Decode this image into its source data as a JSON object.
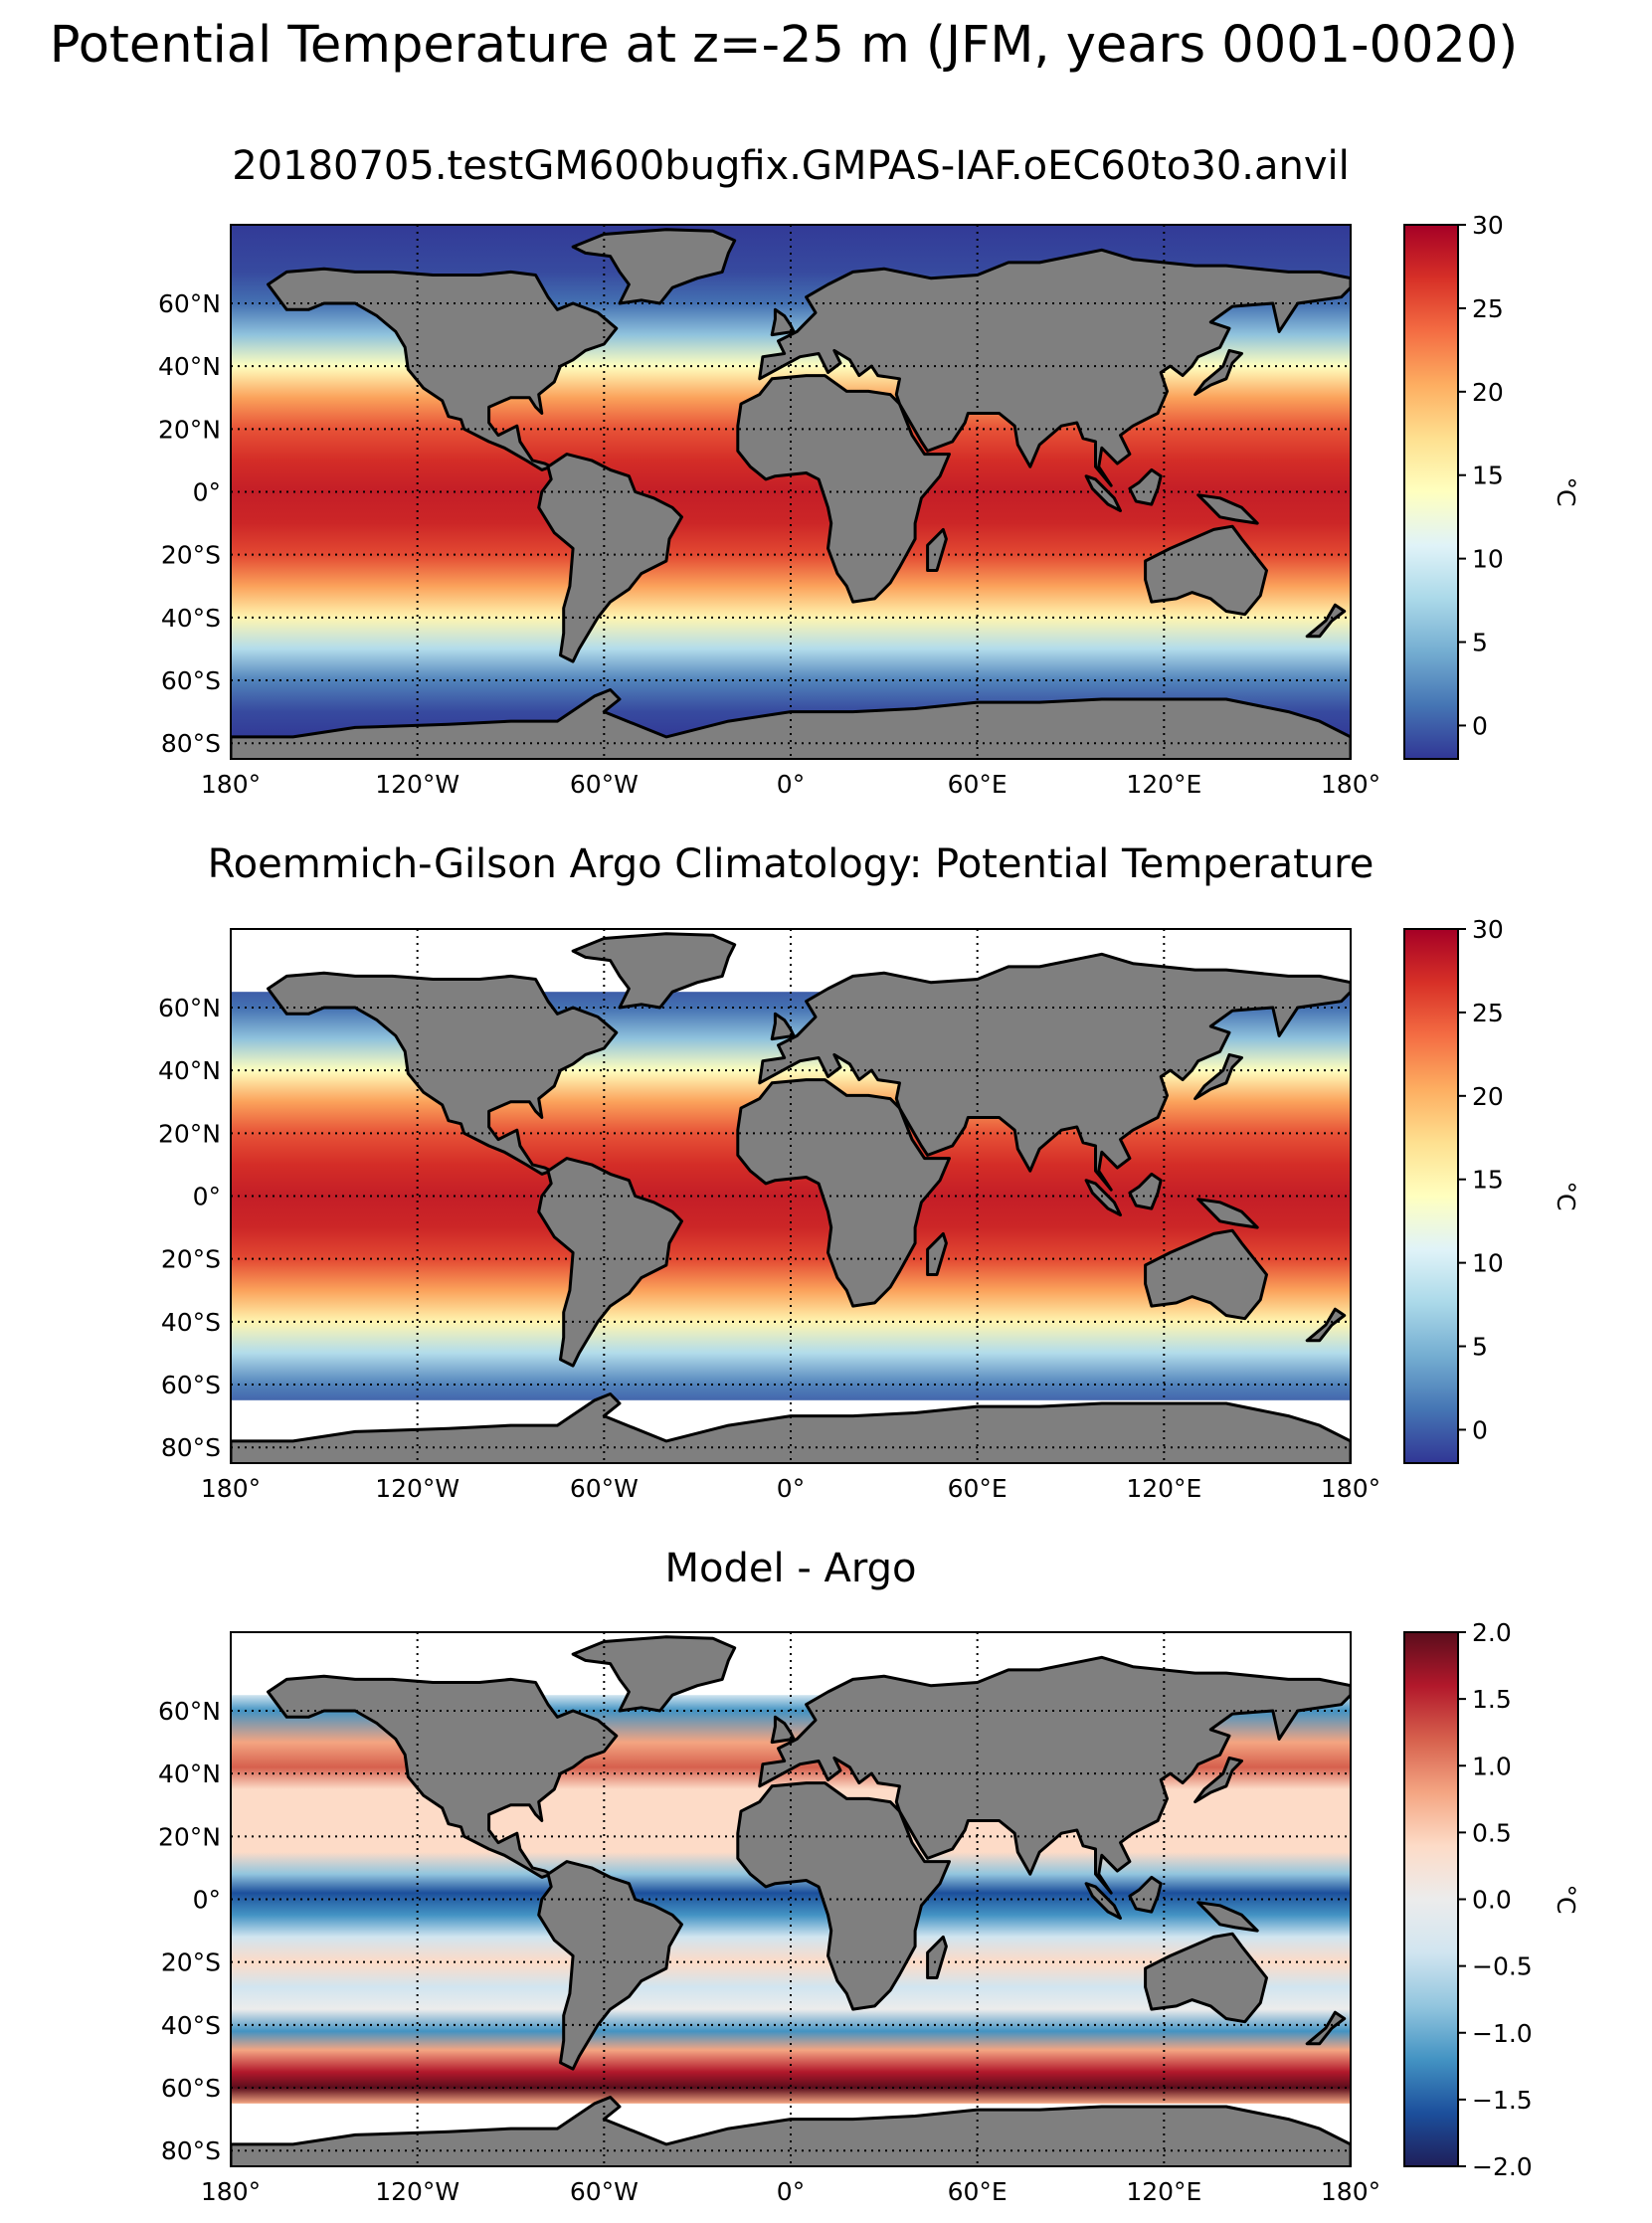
{
  "figure": {
    "title": "Potential Temperature at z=-25 m (JFM, years 0001-0020)"
  },
  "panels": [
    {
      "id": "model",
      "title": "20180705.testGM600bugfix.GMPAS-IAF.oEC60to30.anvil",
      "colormap": "RdYlBu_r",
      "colorbar": {
        "label": "°C",
        "range": [
          -2,
          30
        ],
        "ticks": [
          "30",
          "25",
          "20",
          "15",
          "10",
          "5",
          "0"
        ],
        "tick_values": [
          30,
          25,
          20,
          15,
          10,
          5,
          0
        ]
      },
      "coverage": {
        "lat_min": -78,
        "lat_max": 85
      }
    },
    {
      "id": "obs",
      "title": "Roemmich-Gilson Argo Climatology: Potential Temperature",
      "colormap": "RdYlBu_r",
      "colorbar": {
        "label": "°C",
        "range": [
          -2,
          30
        ],
        "ticks": [
          "30",
          "25",
          "20",
          "15",
          "10",
          "5",
          "0"
        ],
        "tick_values": [
          30,
          25,
          20,
          15,
          10,
          5,
          0
        ]
      },
      "coverage": {
        "lat_min": -65,
        "lat_max": 65
      }
    },
    {
      "id": "bias",
      "title": "Model - Argo",
      "colormap": "RdBu_r",
      "colorbar": {
        "label": "°C",
        "range": [
          -2,
          2
        ],
        "ticks": [
          "2.0",
          "1.5",
          "1.0",
          "0.5",
          "0.0",
          "−0.5",
          "−1.0",
          "−1.5",
          "−2.0"
        ],
        "tick_values": [
          2,
          1.5,
          1,
          0.5,
          0,
          -0.5,
          -1,
          -1.5,
          -2
        ]
      },
      "coverage": {
        "lat_min": -65,
        "lat_max": 65
      }
    }
  ],
  "axes": {
    "lon_range": [
      -180,
      180
    ],
    "lat_range": [
      -85,
      85
    ],
    "lon_ticks": [
      {
        "value": -180,
        "label": "180°"
      },
      {
        "value": -120,
        "label": "120°W"
      },
      {
        "value": -60,
        "label": "60°W"
      },
      {
        "value": 0,
        "label": "0°"
      },
      {
        "value": 60,
        "label": "60°E"
      },
      {
        "value": 120,
        "label": "120°E"
      },
      {
        "value": 180,
        "label": "180°"
      }
    ],
    "lat_ticks": [
      {
        "value": 60,
        "label": "60°N"
      },
      {
        "value": 40,
        "label": "40°N"
      },
      {
        "value": 20,
        "label": "20°N"
      },
      {
        "value": 0,
        "label": "0°"
      },
      {
        "value": -20,
        "label": "20°S"
      },
      {
        "value": -40,
        "label": "40°S"
      },
      {
        "value": -60,
        "label": "60°S"
      },
      {
        "value": -80,
        "label": "80°S"
      }
    ],
    "gridlines": "dotted"
  },
  "colors": {
    "land": "#7f7f7f",
    "coastline": "#000000",
    "missing": "#ffffff"
  }
}
